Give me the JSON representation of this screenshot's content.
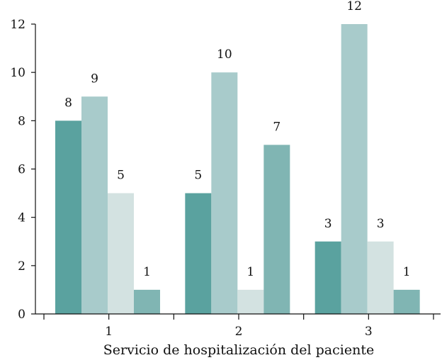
{
  "chart_data": {
    "type": "bar",
    "title": "",
    "xlabel": "Servicio de hospitalización del paciente",
    "ylabel": "",
    "ylim": [
      0,
      12
    ],
    "yticks": [
      "0",
      "2",
      "4",
      "6",
      "8",
      "10",
      "12"
    ],
    "categories": [
      "1",
      "2",
      "3"
    ],
    "grid": false,
    "legend": "none",
    "series": [
      {
        "values": [
          8,
          5,
          3
        ],
        "color": "#5aa29f"
      },
      {
        "values": [
          9,
          10,
          12
        ],
        "color": "#a8cbcb"
      },
      {
        "values": [
          5,
          1,
          3
        ],
        "color": "#d3e2e1"
      },
      {
        "values": [
          1,
          7,
          1
        ],
        "color": "#80b5b3"
      }
    ]
  }
}
